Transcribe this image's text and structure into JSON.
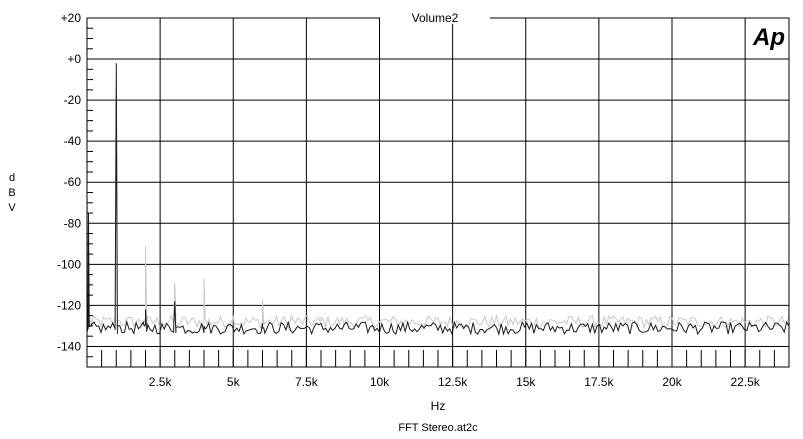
{
  "chart_data": {
    "type": "line",
    "title": "Volume2",
    "xlabel": "Hz",
    "ylabel": "dBV",
    "footer": "FFT Stereo.at2c",
    "logo": "Ap",
    "xlim": [
      0,
      24000
    ],
    "ylim": [
      -150,
      20
    ],
    "x_ticks": [
      2500,
      5000,
      7500,
      10000,
      12500,
      15000,
      17500,
      20000,
      22500
    ],
    "x_tick_labels": [
      "2.5k",
      "5k",
      "7.5k",
      "10k",
      "12.5k",
      "15k",
      "17.5k",
      "20k",
      "22.5k"
    ],
    "y_ticks": [
      20,
      0,
      -20,
      -40,
      -60,
      -80,
      -100,
      -120,
      -140
    ],
    "y_tick_labels": [
      "+20",
      "+0",
      "-20",
      "-40",
      "-60",
      "-80",
      "-100",
      "-120",
      "-140"
    ],
    "grid": true,
    "colors": {
      "ch1": "#1a1a1a",
      "ch2": "#c8c8c8",
      "grid": "#000000"
    },
    "series": [
      {
        "color": "#1a1a1a",
        "noise_floor": -131,
        "points": [
          [
            0,
            -65
          ],
          [
            50,
            -75
          ],
          [
            120,
            -130
          ],
          [
            1000,
            -2
          ],
          [
            2000,
            -122
          ],
          [
            3000,
            -118
          ],
          [
            4000,
            -130
          ],
          [
            6000,
            -131
          ]
        ]
      },
      {
        "color": "#c8c8c8",
        "noise_floor": -128,
        "points": [
          [
            0,
            -65
          ],
          [
            120,
            -128
          ],
          [
            1000,
            -18
          ],
          [
            2000,
            -91
          ],
          [
            3000,
            -109
          ],
          [
            4000,
            -107
          ],
          [
            5000,
            -125
          ],
          [
            6000,
            -117
          ],
          [
            7000,
            -125
          ],
          [
            8000,
            -126
          ]
        ]
      }
    ]
  }
}
